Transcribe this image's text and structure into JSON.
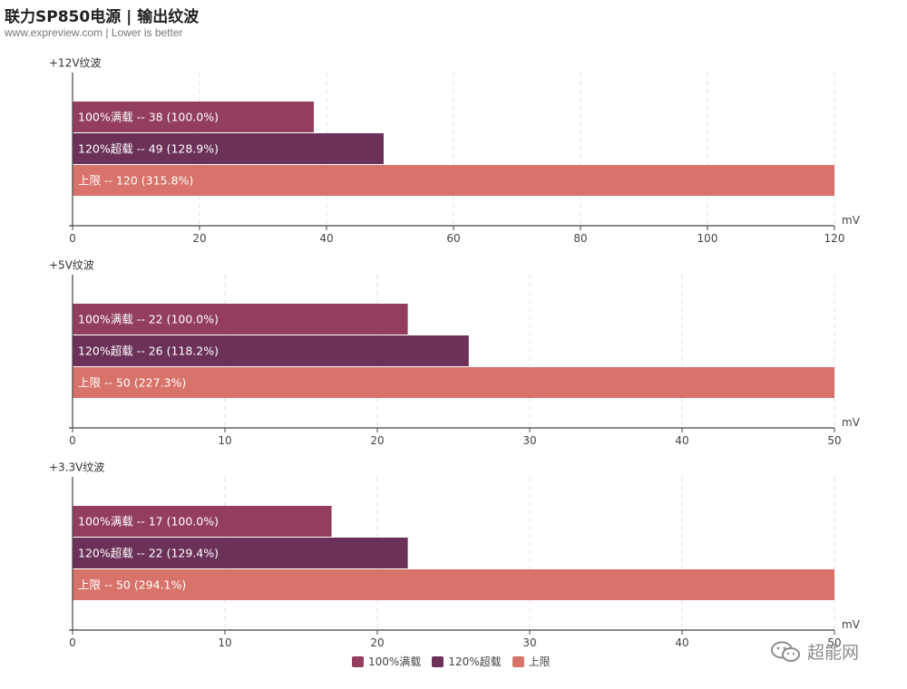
{
  "header": {
    "title": "联力SP850电源 | 输出纹波",
    "subtitle": "www.expreview.com | Lower is better"
  },
  "colors": {
    "full_load": "#933e5e",
    "over_load": "#6b3158",
    "limit": "#d7736a",
    "axis": "#444444",
    "grid": "#e2e2e2"
  },
  "legend": [
    {
      "name": "100%满载",
      "color": "#933e5e"
    },
    {
      "name": "120%超载",
      "color": "#6b3158"
    },
    {
      "name": "上限",
      "color": "#d7736a"
    }
  ],
  "watermark": {
    "text": "超能网"
  },
  "chart_data": [
    {
      "type": "bar",
      "orientation": "horizontal",
      "title": "+12V纹波",
      "unit": "mV",
      "xlim": [
        0,
        120
      ],
      "ticks": [
        0,
        20,
        40,
        60,
        80,
        100,
        120
      ],
      "grid": true,
      "bars": [
        {
          "series": "100%满载",
          "value": 38,
          "label": "100%满载  --  38 (100.0%)"
        },
        {
          "series": "120%超载",
          "value": 49,
          "label": "120%超载  --  49 (128.9%)"
        },
        {
          "series": "上限",
          "value": 120,
          "label": "上限  --  120 (315.8%)"
        }
      ]
    },
    {
      "type": "bar",
      "orientation": "horizontal",
      "title": "+5V纹波",
      "unit": "mV",
      "xlim": [
        0,
        50
      ],
      "ticks": [
        0,
        10,
        20,
        30,
        40,
        50
      ],
      "grid": true,
      "bars": [
        {
          "series": "100%满载",
          "value": 22,
          "label": "100%满载  --  22 (100.0%)"
        },
        {
          "series": "120%超载",
          "value": 26,
          "label": "120%超载  --  26 (118.2%)"
        },
        {
          "series": "上限",
          "value": 50,
          "label": "上限  --  50 (227.3%)"
        }
      ]
    },
    {
      "type": "bar",
      "orientation": "horizontal",
      "title": "+3.3V纹波",
      "unit": "mV",
      "xlim": [
        0,
        50
      ],
      "ticks": [
        0,
        10,
        20,
        30,
        40,
        50
      ],
      "grid": true,
      "bars": [
        {
          "series": "100%满载",
          "value": 17,
          "label": "100%满载  --  17 (100.0%)"
        },
        {
          "series": "120%超载",
          "value": 22,
          "label": "120%超载  --  22 (129.4%)"
        },
        {
          "series": "上限",
          "value": 50,
          "label": "上限  --  50 (294.1%)"
        }
      ]
    }
  ]
}
